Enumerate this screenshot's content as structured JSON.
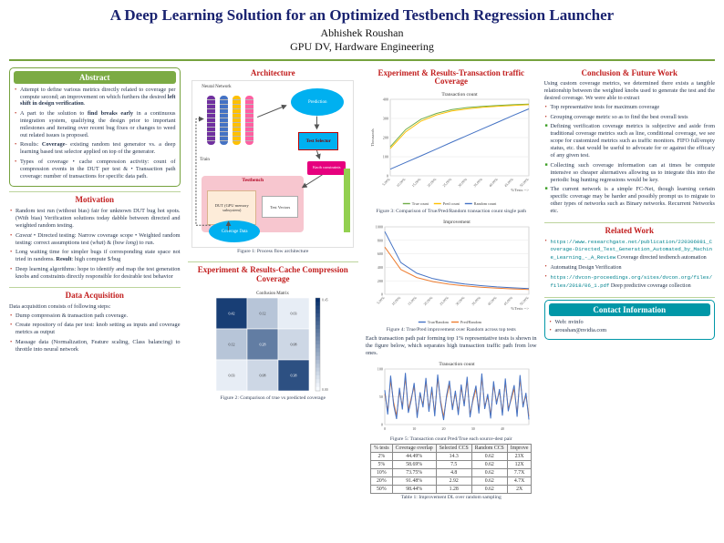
{
  "colors": {
    "title_navy": "#1a2370",
    "heading_red": "#c21f1f",
    "accent_green": "#76a23e",
    "contact_teal": "#0097a7"
  },
  "header": {
    "title": "A Deep Learning Solution for an Optimized Testbench Regression Launcher",
    "author": "Abhishek Roushan",
    "affiliation": "GPU DV, Hardware Engineering"
  },
  "abstract": {
    "heading": "Abstract",
    "bullets": [
      "Attempt to define various metrics directly related to coverage per compute second; an improvement on which furthers the desired <b>left shift in design verification</b>.",
      "A part to the solution to <b>find breaks early</b> in a continuous integration system, qualifying the design prior to important milestones and iterating over recent bug fixes or changes to weed out related issues is proposed.",
      "Results: <b>Coverage</b>- existing random test generator vs. a deep learning based test selector applied on top of the generator.",
      "Types of coverage &#8226; cache compression activity: count of compression events in the DUT per test &amp; &#8226; Transaction path coverage: number of transactions for specific data path."
    ]
  },
  "motivation": {
    "heading": "Motivation",
    "bullets": [
      "Random test run (without bias) fair for unknown DUT bug hot spots. (With bias) Verification solutions today dabble between directed and weighted random testing.",
      "<i>Caveat</i> &#8226; Directed testing: Narrow coverage scope &#8226; Weighted random testing: correct assumptions test (<i>what</i>) &amp; (<i>how long</i>) to run.",
      "Long waiting time for simpler bugs if corresponding state space not tried in randoms. <b>Result</b>: high compute $/bug",
      "Deep learning algorithms: hope to identify and map the test generation knobs and constraints directly responsible for desirable test behavior"
    ]
  },
  "data_acquisition": {
    "heading": "Data Acquisition",
    "intro": "Data acquisition consists of following steps:",
    "bullets": [
      "Dump compression &amp; transaction path coverage.",
      "Create repository of data per test: knob setting as inputs and coverage metrics as output",
      "Massage data (Normalization, Feature scaling, Class balancing) to throttle into neural network"
    ]
  },
  "architecture": {
    "heading": "Architecture",
    "caption": "Figure 1: Process flow architecture",
    "diagram": {
      "neural_network": "Neural Network",
      "prediction": "Prediction",
      "test_selector": "Test Selector",
      "train": "Train",
      "knob_constraints": "Knob constraints",
      "testbench": "Testbench",
      "dut": "DUT (GPU memory subsystem)",
      "test_vectors": "Test Vectors",
      "coverage_data": "Coverage Data"
    }
  },
  "cache_section": {
    "heading": "Experiment & Results-Cache Compression Coverage",
    "caption": "Figure 2: Comparison of true vs predicted coverage"
  },
  "transaction_section": {
    "heading": "Experiment & Results-Transaction traffic Coverage",
    "fig3_caption": "Figure 3: Comparison of True/Pred/Random transaction count single path",
    "fig4_caption": "Figure 4: True/Pred improvement over Random across top tests",
    "paragraph": "Each transaction path pair forming top 1% representative tests is shown in the figure below, which separates high transaction traffic path from low ones.",
    "fig5_caption": "Figure 5: Transaction count Pred/True each source-dest pair",
    "table_caption": "Table 1: Improvement DL over random sampling",
    "table": {
      "headers": [
        "% tests",
        "Coverage overlap",
        "Selected CCS",
        "Random CCS",
        "Improve"
      ],
      "rows": [
        [
          "2%",
          "44.49%",
          "14.3",
          "0.62",
          "23X"
        ],
        [
          "5%",
          "58.69%",
          "7.5",
          "0.62",
          "12X"
        ],
        [
          "10%",
          "73.75%",
          "4.8",
          "0.62",
          "7.7X"
        ],
        [
          "20%",
          "91.48%",
          "2.92",
          "0.62",
          "4.7X"
        ],
        [
          "50%",
          "98.44%",
          "1.28",
          "0.62",
          "2X"
        ]
      ]
    }
  },
  "conclusion": {
    "heading": "Conclusion & Future Work",
    "intro": "Using custom coverage metrics, we determined there exists a tangible relationship between the weighted knobs used to generate the test and the desired coverage. We were able to extract",
    "bullets": [
      "Top representative tests for maximum coverage",
      "Grouping coverage metric so as to find the best overall tests",
      "Defining verification coverage metrics is subjective and aside from traditional coverage metrics such as line, conditional coverage, we see scope for customized metrics such as traffic monitors. FIFO full/empty status, etc. that would be useful to advocate for or against the efficacy of any given test.",
      "Collecting such coverage information can at times be compute intensive so cheaper alternatives allowing us to integrate this into the periodic bug hunting regressions would be key.",
      "The current network is a simple FC-Net, though learning certain specific coverage may be harder and possibly prompt us to migrate to other types of networks such as Binary networks. Recurrent Networks etc."
    ]
  },
  "related": {
    "heading": "Related Work",
    "items": [
      {
        "url": "https://www.researchgate.net/publication/220306081_Coverage-Directed_Test_Generation_Automated_by_Machine_Learning_-_A_Review",
        "text": "Coverage directed testbench automation"
      },
      {
        "url": "",
        "text": "Automating Design Verification"
      },
      {
        "url": "https://dvcon-proceedings.org/sites/dvcon.org/files/files/2018/06_1.pdf",
        "text": "Deep predictive coverage collection"
      }
    ]
  },
  "contact": {
    "heading": "Contact Information",
    "items": [
      "Web: nvinfo",
      "aroushan@nvidia.com"
    ]
  },
  "chart_data": [
    {
      "id": "figure2",
      "type": "heatmap",
      "title": "Confusion Matrix",
      "matrix": [
        [
          0.42,
          0.12,
          0.03
        ],
        [
          0.12,
          0.28,
          0.08
        ],
        [
          0.03,
          0.08,
          0.38
        ]
      ],
      "vmax": 0.45
    },
    {
      "id": "figure3",
      "type": "line",
      "title": "Transaction count",
      "ylabel": "Thousands",
      "xlabel": "%Tests -->",
      "ylim": [
        0,
        400
      ],
      "yticks": [
        0,
        100,
        200,
        300,
        400
      ],
      "x_labels": [
        "5.00%",
        "10.00%",
        "15.00%",
        "20.00%",
        "25.00%",
        "30.00%",
        "35.00%",
        "40.00%",
        "45.00%",
        "50.00%"
      ],
      "series": [
        {
          "name": "True count",
          "color": "#70ad47",
          "values": [
            152,
            242,
            296,
            326,
            346,
            357,
            363,
            368,
            372,
            375
          ]
        },
        {
          "name": "Pred count",
          "color": "#ffc000",
          "values": [
            143,
            230,
            286,
            318,
            339,
            350,
            358,
            364,
            368,
            372
          ]
        },
        {
          "name": "Random count",
          "color": "#4472c4",
          "values": [
            35,
            70,
            105,
            140,
            176,
            211,
            246,
            281,
            316,
            350
          ]
        }
      ]
    },
    {
      "id": "figure4",
      "type": "line",
      "title": "Improvement",
      "xlabel": "%Tests -->",
      "ylim": [
        0,
        1000
      ],
      "yticks": [
        0,
        200,
        400,
        600,
        800,
        1000
      ],
      "x_labels": [
        "5.00%",
        "10.00%",
        "15.00%",
        "20.00%",
        "25.00%",
        "30.00%",
        "35.00%",
        "40.00%",
        "45.00%",
        "50.00%"
      ],
      "series": [
        {
          "name": "True/Random",
          "color": "#4472c4",
          "values": [
            930,
            470,
            312,
            232,
            185,
            152,
            128,
            110,
            96,
            85
          ]
        },
        {
          "name": "Pred/Random",
          "color": "#ed7d31",
          "values": [
            700,
            368,
            248,
            188,
            150,
            124,
            105,
            91,
            80,
            71
          ]
        }
      ]
    },
    {
      "id": "figure5",
      "type": "line",
      "title": "Transaction count",
      "ylim": [
        0,
        100
      ],
      "yticks": [
        0,
        50,
        100
      ],
      "xticks": [
        0,
        10,
        20,
        30,
        40
      ],
      "legend": false,
      "series": [
        {
          "name": "Pred",
          "color": "#ed7d31",
          "values": [
            55,
            24,
            80,
            40,
            16,
            60,
            33,
            85,
            26,
            48,
            68,
            18,
            53,
            36,
            77,
            28,
            62,
            21,
            83,
            42,
            14,
            48,
            72,
            31,
            56,
            23,
            66,
            38,
            79,
            19,
            43,
            64,
            26,
            85,
            33,
            50,
            17,
            71,
            41,
            59,
            22,
            76,
            29,
            45,
            65,
            20,
            82,
            36,
            52,
            15
          ]
        },
        {
          "name": "True",
          "color": "#4472c4",
          "values": [
            62,
            18,
            88,
            35,
            10,
            66,
            27,
            93,
            21,
            44,
            75,
            12,
            58,
            31,
            84,
            23,
            68,
            15,
            90,
            38,
            8,
            52,
            79,
            26,
            61,
            17,
            72,
            33,
            86,
            13,
            47,
            70,
            20,
            92,
            28,
            55,
            11,
            78,
            36,
            64,
            16,
            83,
            24,
            49,
            71,
            14,
            89,
            31,
            57,
            9
          ]
        }
      ]
    }
  ]
}
